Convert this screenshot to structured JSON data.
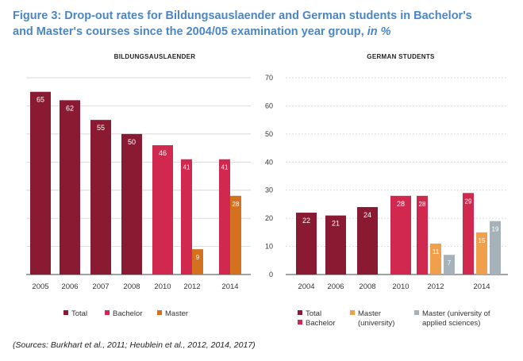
{
  "title": {
    "line1": "Figure 3: Drop-out rates for Bildungsauslaender and German students in Bachelor's",
    "line2": "and Master's courses since the 2004/05 examination year group,",
    "unit": "in %"
  },
  "source": "(Sources: Burkhart et al., 2011; Heublein et al., 2012, 2014, 2017)",
  "colors": {
    "total": "#8a1a32",
    "bachelor": "#d0284e",
    "master": "#d4711f",
    "master_university": "#f0a04a",
    "master_applied": "#a6b2ba",
    "grid": "#cccccc",
    "axis": "#444444"
  },
  "chart_data": [
    {
      "type": "bar",
      "title": "BILDUNGSAUSLAENDER",
      "categories": [
        "2005",
        "2006",
        "2007",
        "2008",
        "2010",
        "2012",
        "2014"
      ],
      "ylim": [
        0,
        70
      ],
      "grid": true,
      "series": [
        {
          "name": "Total",
          "color_key": "total",
          "values": [
            65,
            62,
            55,
            50,
            null,
            null,
            null
          ]
        },
        {
          "name": "Bachelor",
          "color_key": "bachelor",
          "values": [
            null,
            null,
            null,
            null,
            46,
            41,
            41
          ]
        },
        {
          "name": "Master",
          "color_key": "master",
          "values": [
            null,
            null,
            null,
            null,
            null,
            9,
            28
          ]
        }
      ],
      "legend": [
        {
          "label": "Total",
          "color_key": "total"
        },
        {
          "label": "Bachelor",
          "color_key": "bachelor"
        },
        {
          "label": "Master",
          "color_key": "master"
        }
      ]
    },
    {
      "type": "bar",
      "title": "GERMAN STUDENTS",
      "categories": [
        "2004",
        "2006",
        "2008",
        "2010",
        "2012",
        "2014"
      ],
      "ylim": [
        0,
        70
      ],
      "yticks": [
        0,
        10,
        20,
        30,
        40,
        50,
        60,
        70
      ],
      "grid": true,
      "series": [
        {
          "name": "Total",
          "color_key": "total",
          "values": [
            22,
            21,
            24,
            null,
            null,
            null
          ]
        },
        {
          "name": "Bachelor",
          "color_key": "bachelor",
          "values": [
            null,
            null,
            null,
            28,
            28,
            29
          ]
        },
        {
          "name": "Master (university)",
          "color_key": "master_university",
          "values": [
            null,
            null,
            null,
            null,
            11,
            15
          ]
        },
        {
          "name": "Master (university of applied sciences)",
          "color_key": "master_applied",
          "values": [
            null,
            null,
            null,
            null,
            7,
            19
          ]
        }
      ],
      "legend": [
        {
          "label": "Total",
          "color_key": "total"
        },
        {
          "label": "Bachelor",
          "color_key": "bachelor"
        },
        {
          "label": "Master\n(university)",
          "color_key": "master_university"
        },
        {
          "label": "Master (university of\napplied sciences)",
          "color_key": "master_applied"
        }
      ]
    }
  ]
}
